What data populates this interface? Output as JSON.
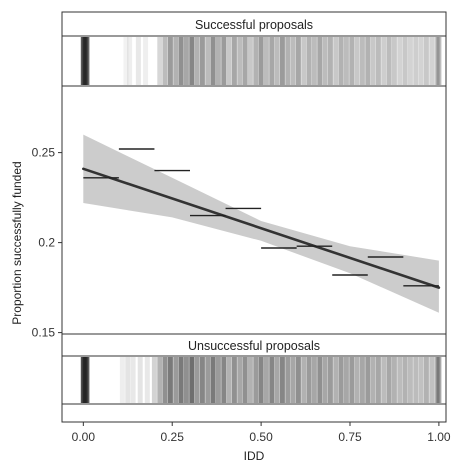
{
  "chart_data": {
    "type": "line",
    "xlabel": "IDD",
    "ylabel": "Proportion successfully funded",
    "xlim": [
      -0.06,
      1.02
    ],
    "ylim": [
      0.137,
      0.287
    ],
    "x_ticks": [
      0,
      0.25,
      0.5,
      0.75,
      1
    ],
    "x_tick_labels": [
      "0.00",
      "0.25",
      "0.50",
      "0.75",
      "1.00"
    ],
    "y_ticks": [
      0.15,
      0.2,
      0.25
    ],
    "y_tick_labels": [
      "0.15",
      "0.2",
      "0.25"
    ],
    "grid": false,
    "binned_proportions": [
      {
        "x0": 0.0,
        "x1": 0.1,
        "y": 0.236
      },
      {
        "x0": 0.1,
        "x1": 0.2,
        "y": 0.252
      },
      {
        "x0": 0.2,
        "x1": 0.3,
        "y": 0.24
      },
      {
        "x0": 0.3,
        "x1": 0.4,
        "y": 0.215
      },
      {
        "x0": 0.4,
        "x1": 0.5,
        "y": 0.219
      },
      {
        "x0": 0.5,
        "x1": 0.6,
        "y": 0.197
      },
      {
        "x0": 0.6,
        "x1": 0.7,
        "y": 0.198
      },
      {
        "x0": 0.7,
        "x1": 0.8,
        "y": 0.182
      },
      {
        "x0": 0.8,
        "x1": 0.9,
        "y": 0.192
      },
      {
        "x0": 0.9,
        "x1": 1.0,
        "y": 0.176
      }
    ],
    "fit_line": {
      "x": [
        0,
        1
      ],
      "y": [
        0.241,
        0.175
      ]
    },
    "confidence_band": {
      "x": [
        0,
        0.25,
        0.5,
        0.75,
        1
      ],
      "lower": [
        0.222,
        0.214,
        0.201,
        0.183,
        0.161
      ],
      "upper": [
        0.26,
        0.236,
        0.212,
        0.198,
        0.19
      ]
    },
    "strips": [
      {
        "title": "Successful proposals",
        "marks": [
          {
            "x": 0.0,
            "s": 0.75
          },
          {
            "x": 0.005,
            "s": 0.8
          },
          {
            "x": 0.01,
            "s": 0.7
          },
          {
            "x": 0.12,
            "s": 0.06
          },
          {
            "x": 0.13,
            "s": 0.08
          },
          {
            "x": 0.155,
            "s": 0.1
          },
          {
            "x": 0.175,
            "s": 0.07
          },
          {
            "x": 0.215,
            "s": 0.18
          },
          {
            "x": 0.23,
            "s": 0.3
          },
          {
            "x": 0.245,
            "s": 0.45
          },
          {
            "x": 0.26,
            "s": 0.35
          },
          {
            "x": 0.275,
            "s": 0.5
          },
          {
            "x": 0.29,
            "s": 0.4
          },
          {
            "x": 0.305,
            "s": 0.55
          },
          {
            "x": 0.32,
            "s": 0.35
          },
          {
            "x": 0.335,
            "s": 0.45
          },
          {
            "x": 0.35,
            "s": 0.3
          },
          {
            "x": 0.365,
            "s": 0.5
          },
          {
            "x": 0.38,
            "s": 0.35
          },
          {
            "x": 0.395,
            "s": 0.45
          },
          {
            "x": 0.41,
            "s": 0.25
          },
          {
            "x": 0.425,
            "s": 0.4
          },
          {
            "x": 0.44,
            "s": 0.3
          },
          {
            "x": 0.455,
            "s": 0.4
          },
          {
            "x": 0.47,
            "s": 0.25
          },
          {
            "x": 0.485,
            "s": 0.35
          },
          {
            "x": 0.5,
            "s": 0.45
          },
          {
            "x": 0.515,
            "s": 0.3
          },
          {
            "x": 0.53,
            "s": 0.4
          },
          {
            "x": 0.545,
            "s": 0.3
          },
          {
            "x": 0.56,
            "s": 0.45
          },
          {
            "x": 0.575,
            "s": 0.35
          },
          {
            "x": 0.59,
            "s": 0.3
          },
          {
            "x": 0.605,
            "s": 0.4
          },
          {
            "x": 0.62,
            "s": 0.25
          },
          {
            "x": 0.635,
            "s": 0.35
          },
          {
            "x": 0.65,
            "s": 0.3
          },
          {
            "x": 0.665,
            "s": 0.4
          },
          {
            "x": 0.68,
            "s": 0.3
          },
          {
            "x": 0.695,
            "s": 0.35
          },
          {
            "x": 0.71,
            "s": 0.25
          },
          {
            "x": 0.725,
            "s": 0.35
          },
          {
            "x": 0.74,
            "s": 0.3
          },
          {
            "x": 0.755,
            "s": 0.35
          },
          {
            "x": 0.77,
            "s": 0.25
          },
          {
            "x": 0.785,
            "s": 0.3
          },
          {
            "x": 0.8,
            "s": 0.35
          },
          {
            "x": 0.815,
            "s": 0.25
          },
          {
            "x": 0.83,
            "s": 0.3
          },
          {
            "x": 0.845,
            "s": 0.22
          },
          {
            "x": 0.86,
            "s": 0.3
          },
          {
            "x": 0.875,
            "s": 0.25
          },
          {
            "x": 0.89,
            "s": 0.2
          },
          {
            "x": 0.905,
            "s": 0.25
          },
          {
            "x": 0.92,
            "s": 0.2
          },
          {
            "x": 0.935,
            "s": 0.22
          },
          {
            "x": 0.95,
            "s": 0.2
          },
          {
            "x": 0.965,
            "s": 0.25
          },
          {
            "x": 0.98,
            "s": 0.2
          },
          {
            "x": 0.995,
            "s": 0.25
          },
          {
            "x": 1.0,
            "s": 0.3
          }
        ]
      },
      {
        "title": "Unsuccessful proposals",
        "marks": [
          {
            "x": 0.0,
            "s": 0.8
          },
          {
            "x": 0.005,
            "s": 0.85
          },
          {
            "x": 0.01,
            "s": 0.75
          },
          {
            "x": 0.11,
            "s": 0.08
          },
          {
            "x": 0.125,
            "s": 0.12
          },
          {
            "x": 0.14,
            "s": 0.1
          },
          {
            "x": 0.16,
            "s": 0.12
          },
          {
            "x": 0.18,
            "s": 0.1
          },
          {
            "x": 0.2,
            "s": 0.2
          },
          {
            "x": 0.215,
            "s": 0.35
          },
          {
            "x": 0.23,
            "s": 0.5
          },
          {
            "x": 0.245,
            "s": 0.6
          },
          {
            "x": 0.26,
            "s": 0.45
          },
          {
            "x": 0.275,
            "s": 0.6
          },
          {
            "x": 0.29,
            "s": 0.5
          },
          {
            "x": 0.305,
            "s": 0.65
          },
          {
            "x": 0.32,
            "s": 0.45
          },
          {
            "x": 0.335,
            "s": 0.55
          },
          {
            "x": 0.35,
            "s": 0.45
          },
          {
            "x": 0.365,
            "s": 0.6
          },
          {
            "x": 0.38,
            "s": 0.45
          },
          {
            "x": 0.395,
            "s": 0.55
          },
          {
            "x": 0.41,
            "s": 0.35
          },
          {
            "x": 0.425,
            "s": 0.5
          },
          {
            "x": 0.44,
            "s": 0.4
          },
          {
            "x": 0.455,
            "s": 0.5
          },
          {
            "x": 0.47,
            "s": 0.35
          },
          {
            "x": 0.485,
            "s": 0.45
          },
          {
            "x": 0.5,
            "s": 0.55
          },
          {
            "x": 0.515,
            "s": 0.4
          },
          {
            "x": 0.53,
            "s": 0.55
          },
          {
            "x": 0.545,
            "s": 0.4
          },
          {
            "x": 0.56,
            "s": 0.55
          },
          {
            "x": 0.575,
            "s": 0.45
          },
          {
            "x": 0.59,
            "s": 0.4
          },
          {
            "x": 0.605,
            "s": 0.5
          },
          {
            "x": 0.62,
            "s": 0.35
          },
          {
            "x": 0.635,
            "s": 0.45
          },
          {
            "x": 0.65,
            "s": 0.4
          },
          {
            "x": 0.665,
            "s": 0.5
          },
          {
            "x": 0.68,
            "s": 0.4
          },
          {
            "x": 0.695,
            "s": 0.45
          },
          {
            "x": 0.71,
            "s": 0.35
          },
          {
            "x": 0.725,
            "s": 0.45
          },
          {
            "x": 0.74,
            "s": 0.4
          },
          {
            "x": 0.755,
            "s": 0.45
          },
          {
            "x": 0.77,
            "s": 0.35
          },
          {
            "x": 0.785,
            "s": 0.4
          },
          {
            "x": 0.8,
            "s": 0.45
          },
          {
            "x": 0.815,
            "s": 0.35
          },
          {
            "x": 0.83,
            "s": 0.4
          },
          {
            "x": 0.845,
            "s": 0.3
          },
          {
            "x": 0.86,
            "s": 0.4
          },
          {
            "x": 0.875,
            "s": 0.35
          },
          {
            "x": 0.89,
            "s": 0.3
          },
          {
            "x": 0.905,
            "s": 0.35
          },
          {
            "x": 0.92,
            "s": 0.3
          },
          {
            "x": 0.935,
            "s": 0.3
          },
          {
            "x": 0.95,
            "s": 0.28
          },
          {
            "x": 0.965,
            "s": 0.35
          },
          {
            "x": 0.98,
            "s": 0.28
          },
          {
            "x": 0.995,
            "s": 0.35
          },
          {
            "x": 1.0,
            "s": 0.4
          }
        ]
      }
    ],
    "colors": {
      "fit_line": "#333333",
      "band": "#cccccc",
      "bin_segments": "#222222",
      "frame": "#333333",
      "strip_marks": "#222222"
    }
  }
}
